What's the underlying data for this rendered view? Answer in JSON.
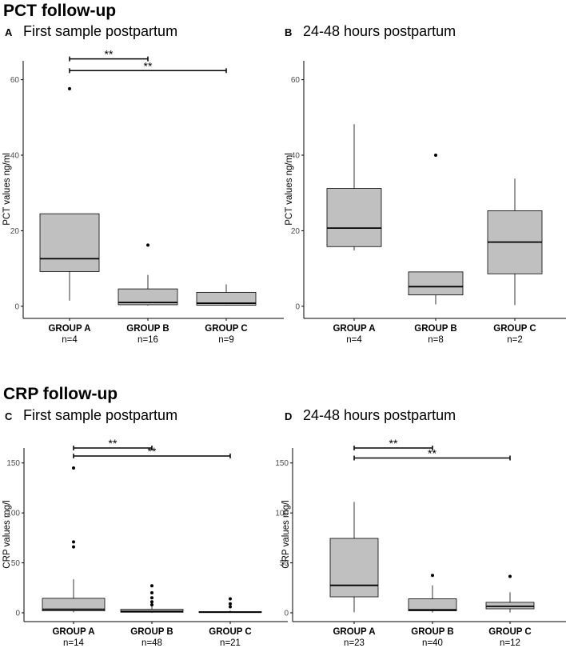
{
  "sections": {
    "pct": {
      "title": "PCT follow-up"
    },
    "crp": {
      "title": "CRP follow-up"
    }
  },
  "colors": {
    "box_fill": "#c0c0c0",
    "stroke": "#000000",
    "axis_text": "#4d4d4d"
  },
  "chart_data": [
    {
      "id": "A",
      "type": "boxplot",
      "letter": "A",
      "title": "First sample postpartum",
      "ylabel": "PCT values ng/ml",
      "ylim": [
        -3,
        65
      ],
      "yticks": [
        0,
        20,
        40,
        60
      ],
      "categories": [
        "GROUP A",
        "GROUP B",
        "GROUP C"
      ],
      "counts": [
        "n=4",
        "n=16",
        "n=9"
      ],
      "boxes": [
        {
          "whisker_low": 1.5,
          "q1": 9.2,
          "median": 12.6,
          "q3": 24.5,
          "whisker_high": 24.5,
          "outliers": [
            57.6
          ]
        },
        {
          "whisker_low": 0.2,
          "q1": 0.4,
          "median": 1.0,
          "q3": 4.6,
          "whisker_high": 8.3,
          "outliers": [
            16.2
          ]
        },
        {
          "whisker_low": 0.2,
          "q1": 0.3,
          "median": 0.8,
          "q3": 3.7,
          "whisker_high": 5.8,
          "outliers": []
        }
      ],
      "significance": [
        {
          "from": "GROUP A",
          "to": "GROUP B",
          "label": "**",
          "y": 65.5
        },
        {
          "from": "GROUP A",
          "to": "GROUP C",
          "label": "**",
          "y": 62.4
        }
      ]
    },
    {
      "id": "B",
      "type": "boxplot",
      "letter": "B",
      "title": "24-48 hours postpartum",
      "ylabel": "PCT values ng/ml",
      "ylim": [
        -3,
        65
      ],
      "yticks": [
        0,
        20,
        40,
        60
      ],
      "categories": [
        "GROUP A",
        "GROUP B",
        "GROUP C"
      ],
      "counts": [
        "n=4",
        "n=8",
        "n=2"
      ],
      "boxes": [
        {
          "whisker_low": 14.8,
          "q1": 15.8,
          "median": 20.7,
          "q3": 31.2,
          "whisker_high": 48.2,
          "outliers": []
        },
        {
          "whisker_low": 0.5,
          "q1": 3.0,
          "median": 5.2,
          "q3": 9.1,
          "whisker_high": 9.1,
          "outliers": [
            40.0
          ]
        },
        {
          "whisker_low": 0.3,
          "q1": 8.6,
          "median": 17.0,
          "q3": 25.3,
          "whisker_high": 33.8,
          "outliers": []
        }
      ],
      "significance": []
    },
    {
      "id": "C",
      "type": "boxplot",
      "letter": "C",
      "title": "First sample postpartum",
      "ylabel": "CRP values mg/l",
      "ylim": [
        -8,
        165
      ],
      "yticks": [
        0,
        50,
        100,
        150
      ],
      "categories": [
        "GROUP A",
        "GROUP B",
        "GROUP C"
      ],
      "counts": [
        "n=14",
        "n=48",
        "n=21"
      ],
      "boxes": [
        {
          "whisker_low": 0.5,
          "q1": 2.0,
          "median": 3.5,
          "q3": 14.5,
          "whisker_high": 33.5,
          "outliers": [
            145,
            71,
            66
          ]
        },
        {
          "whisker_low": 0.1,
          "q1": 0.6,
          "median": 1.4,
          "q3": 3.5,
          "whisker_high": 7.5,
          "outliers": [
            27,
            20,
            15,
            11,
            8
          ]
        },
        {
          "whisker_low": 0.1,
          "q1": 0.3,
          "median": 0.6,
          "q3": 1.2,
          "whisker_high": 2.2,
          "outliers": [
            14,
            9,
            6
          ]
        }
      ],
      "significance": [
        {
          "from": "GROUP A",
          "to": "GROUP B",
          "label": "**",
          "y": 165
        },
        {
          "from": "GROUP A",
          "to": "GROUP C",
          "label": "**",
          "y": 157
        }
      ]
    },
    {
      "id": "D",
      "type": "boxplot",
      "letter": "D",
      "title": "24-48 hours postpartum",
      "ylabel": "CRP values mg/l",
      "ylim": [
        -8,
        165
      ],
      "yticks": [
        0,
        50,
        100,
        150
      ],
      "categories": [
        "GROUP A",
        "GROUP B",
        "GROUP C"
      ],
      "counts": [
        "n=23",
        "n=40",
        "n=12"
      ],
      "boxes": [
        {
          "whisker_low": 0.5,
          "q1": 16.0,
          "median": 27.5,
          "q3": 74.5,
          "whisker_high": 111,
          "outliers": []
        },
        {
          "whisker_low": 0.3,
          "q1": 2.0,
          "median": 3.0,
          "q3": 14.0,
          "whisker_high": 27.5,
          "outliers": [
            37.5
          ]
        },
        {
          "whisker_low": 0.3,
          "q1": 4.0,
          "median": 6.5,
          "q3": 10.5,
          "whisker_high": 20.5,
          "outliers": [
            36.5
          ]
        }
      ],
      "significance": [
        {
          "from": "GROUP A",
          "to": "GROUP B",
          "label": "**",
          "y": 165
        },
        {
          "from": "GROUP A",
          "to": "GROUP C",
          "label": "**",
          "y": 155
        }
      ]
    }
  ]
}
